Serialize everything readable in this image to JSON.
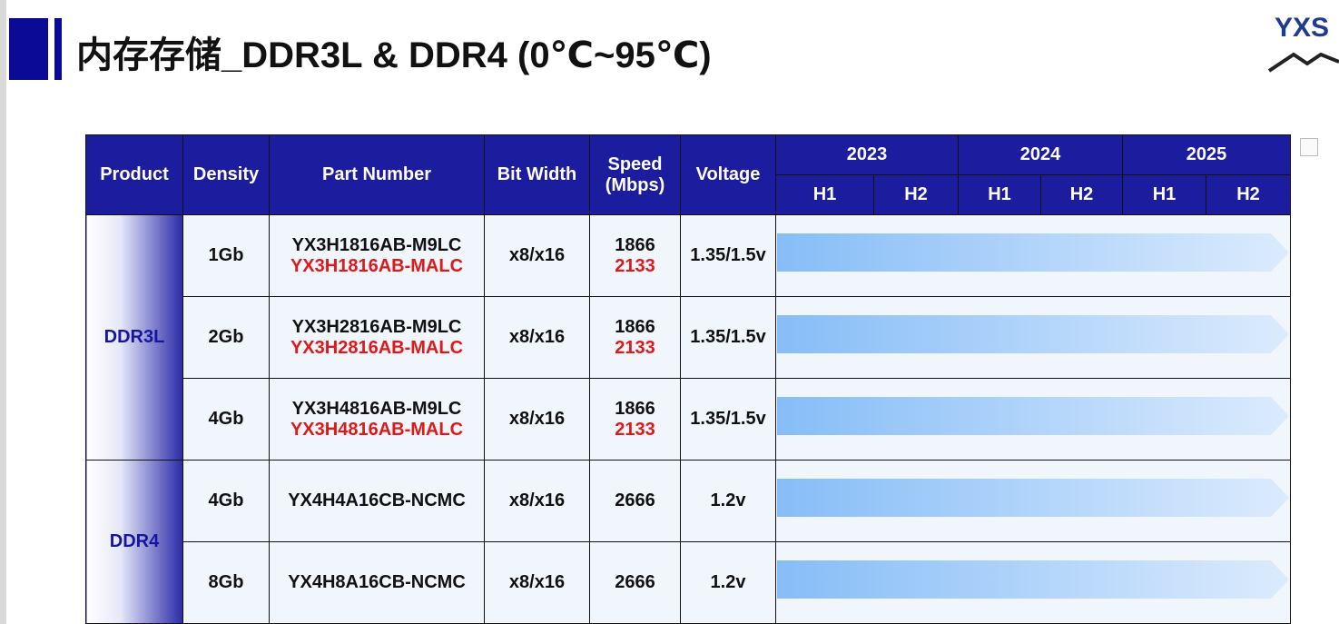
{
  "header": {
    "title": "内存存储_DDR3L & DDR4 (0℃~95℃)",
    "logo": "YXS"
  },
  "table": {
    "columns": [
      "Product",
      "Density",
      "Part Number",
      "Bit Width",
      "Speed (Mbps)",
      "Voltage"
    ],
    "years": [
      {
        "year": "2023",
        "halves": [
          "H1",
          "H2"
        ]
      },
      {
        "year": "2024",
        "halves": [
          "H1",
          "H2"
        ]
      },
      {
        "year": "2025",
        "halves": [
          "H1",
          "H2"
        ]
      }
    ],
    "groups": [
      {
        "product": "DDR3L",
        "rows": [
          {
            "density": "1Gb",
            "part_numbers": [
              "YX3H1816AB-M9LC",
              "YX3H1816AB-MALC"
            ],
            "bit_width": "x8/x16",
            "speeds": [
              1866,
              2133
            ],
            "voltage": "1.35/1.5v"
          },
          {
            "density": "2Gb",
            "part_numbers": [
              "YX3H2816AB-M9LC",
              "YX3H2816AB-MALC"
            ],
            "bit_width": "x8/x16",
            "speeds": [
              1866,
              2133
            ],
            "voltage": "1.35/1.5v"
          },
          {
            "density": "4Gb",
            "part_numbers": [
              "YX3H4816AB-M9LC",
              "YX3H4816AB-MALC"
            ],
            "bit_width": "x8/x16",
            "speeds": [
              1866,
              2133
            ],
            "voltage": "1.35/1.5v"
          }
        ]
      },
      {
        "product": "DDR4",
        "rows": [
          {
            "density": "4Gb",
            "part_numbers": [
              "YX4H4A16CB-NCMC"
            ],
            "bit_width": "x8/x16",
            "speeds": [
              2666
            ],
            "voltage": "1.2v"
          },
          {
            "density": "8Gb",
            "part_numbers": [
              "YX4H8A16CB-NCMC"
            ],
            "bit_width": "x8/x16",
            "speeds": [
              2666
            ],
            "voltage": "1.2v"
          }
        ]
      }
    ]
  }
}
